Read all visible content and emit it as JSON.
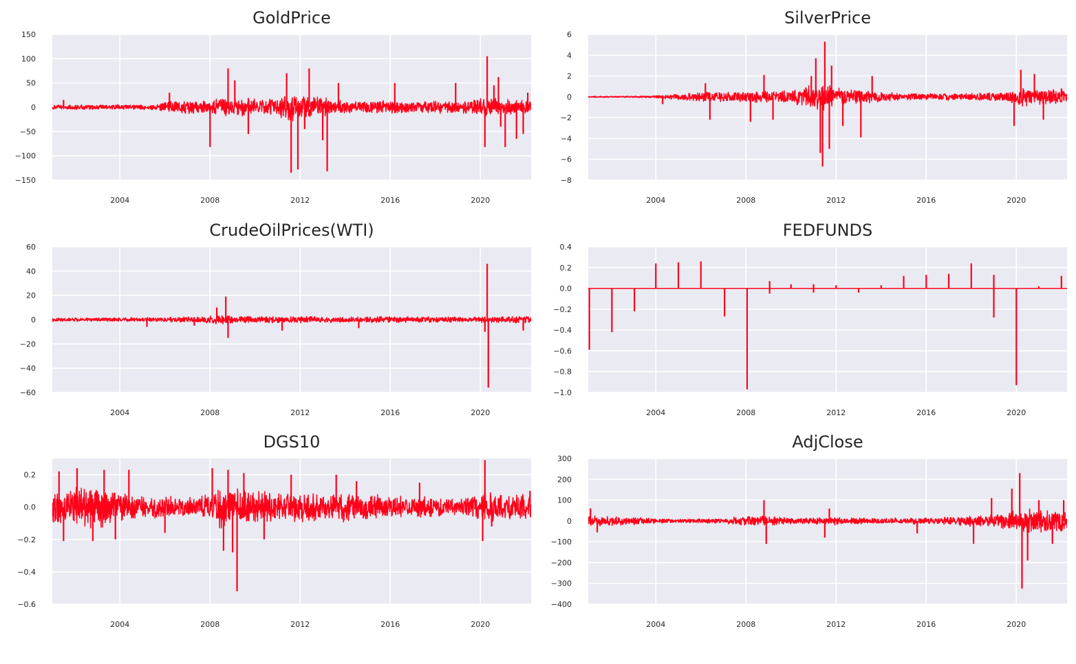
{
  "colors": {
    "background": "#eaeaf2",
    "grid": "#ffffff",
    "series": "#ff0019"
  },
  "chart_data": [
    {
      "type": "line",
      "title": "GoldPrice",
      "grid": true,
      "xlim": [
        2001.0,
        2022.25
      ],
      "ylim": [
        -150,
        150
      ],
      "xticks": [
        2004,
        2008,
        2012,
        2016,
        2020
      ],
      "xtick_labels": [
        "2004",
        "2008",
        "2012",
        "2016",
        "2020"
      ],
      "yticks": [
        -150,
        -100,
        -50,
        0,
        50,
        100,
        150
      ],
      "ytick_labels": [
        "−150",
        "−100",
        "−50",
        "0",
        "50",
        "100",
        "150"
      ],
      "series": [
        {
          "noise": [
            [
              2001.0,
              5
            ],
            [
              2005.5,
              6
            ],
            [
              2006.3,
              14
            ],
            [
              2008.0,
              16
            ],
            [
              2008.5,
              24
            ],
            [
              2009.6,
              20
            ],
            [
              2011.0,
              18
            ],
            [
              2011.5,
              36
            ],
            [
              2012.0,
              26
            ],
            [
              2013.0,
              22
            ],
            [
              2014.0,
              14
            ],
            [
              2019.5,
              14
            ],
            [
              2020.1,
              22
            ],
            [
              2021.0,
              18
            ],
            [
              2022.25,
              16
            ]
          ],
          "spikes": [
            [
              2001.5,
              15
            ],
            [
              2006.2,
              30
            ],
            [
              2008.0,
              -82
            ],
            [
              2008.8,
              80
            ],
            [
              2009.1,
              55
            ],
            [
              2009.7,
              -55
            ],
            [
              2011.4,
              70
            ],
            [
              2011.6,
              -135
            ],
            [
              2011.9,
              -128
            ],
            [
              2012.2,
              -45
            ],
            [
              2012.4,
              80
            ],
            [
              2013.0,
              -68
            ],
            [
              2013.2,
              -132
            ],
            [
              2013.7,
              50
            ],
            [
              2016.2,
              50
            ],
            [
              2018.9,
              50
            ],
            [
              2020.2,
              -82
            ],
            [
              2020.3,
              105
            ],
            [
              2020.6,
              45
            ],
            [
              2020.8,
              62
            ],
            [
              2020.9,
              -40
            ],
            [
              2021.1,
              -82
            ],
            [
              2021.6,
              -65
            ],
            [
              2021.9,
              -55
            ],
            [
              2022.1,
              30
            ]
          ]
        }
      ]
    },
    {
      "type": "line",
      "title": "SilverPrice",
      "grid": true,
      "xlim": [
        2001.0,
        2022.25
      ],
      "ylim": [
        -8,
        6
      ],
      "xticks": [
        2004,
        2008,
        2012,
        2016,
        2020
      ],
      "xtick_labels": [
        "2004",
        "2008",
        "2012",
        "2016",
        "2020"
      ],
      "yticks": [
        -8,
        -6,
        -4,
        -2,
        0,
        2,
        4,
        6
      ],
      "ytick_labels": [
        "−8",
        "−6",
        "−4",
        "−2",
        "0",
        "2",
        "4",
        "6"
      ],
      "series": [
        {
          "noise": [
            [
              2001.0,
              0.06
            ],
            [
              2003.5,
              0.08
            ],
            [
              2005.0,
              0.3
            ],
            [
              2006.3,
              0.5
            ],
            [
              2008.0,
              0.55
            ],
            [
              2010.0,
              0.65
            ],
            [
              2011.0,
              1.3
            ],
            [
              2011.5,
              1.6
            ],
            [
              2012.0,
              0.9
            ],
            [
              2013.0,
              0.7
            ],
            [
              2015.0,
              0.35
            ],
            [
              2018.0,
              0.35
            ],
            [
              2019.5,
              0.5
            ],
            [
              2020.2,
              1.0
            ],
            [
              2021.0,
              0.8
            ],
            [
              2022.25,
              0.7
            ]
          ],
          "spikes": [
            [
              2004.3,
              -0.7
            ],
            [
              2006.2,
              1.3
            ],
            [
              2006.4,
              -2.2
            ],
            [
              2008.2,
              -2.4
            ],
            [
              2008.8,
              2.1
            ],
            [
              2009.2,
              -2.2
            ],
            [
              2010.9,
              2.0
            ],
            [
              2011.1,
              3.7
            ],
            [
              2011.3,
              -5.4
            ],
            [
              2011.4,
              -6.7
            ],
            [
              2011.5,
              5.3
            ],
            [
              2011.7,
              -5.0
            ],
            [
              2011.8,
              3.0
            ],
            [
              2012.3,
              -2.8
            ],
            [
              2013.1,
              -3.9
            ],
            [
              2013.6,
              2.0
            ],
            [
              2019.9,
              -2.8
            ],
            [
              2020.2,
              2.6
            ],
            [
              2020.8,
              2.2
            ],
            [
              2021.2,
              -2.2
            ],
            [
              2022.0,
              0.8
            ]
          ]
        }
      ]
    },
    {
      "type": "line",
      "title": "CrudeOilPrices(WTI)",
      "grid": true,
      "xlim": [
        2001.0,
        2022.25
      ],
      "ylim": [
        -60,
        60
      ],
      "xticks": [
        2004,
        2008,
        2012,
        2016,
        2020
      ],
      "xtick_labels": [
        "2004",
        "2008",
        "2012",
        "2016",
        "2020"
      ],
      "yticks": [
        -60,
        -40,
        -20,
        0,
        20,
        40,
        60
      ],
      "ytick_labels": [
        "−60",
        "−40",
        "−20",
        "0",
        "20",
        "40",
        "60"
      ],
      "series": [
        {
          "noise": [
            [
              2001.0,
              1.5
            ],
            [
              2005.0,
              1.8
            ],
            [
              2007.5,
              2.5
            ],
            [
              2008.5,
              4.0
            ],
            [
              2009.2,
              3.2
            ],
            [
              2011.0,
              2.8
            ],
            [
              2014.5,
              2.5
            ],
            [
              2015.5,
              2.8
            ],
            [
              2019.5,
              2.2
            ],
            [
              2020.3,
              3.0
            ],
            [
              2022.25,
              3.0
            ]
          ],
          "spikes": [
            [
              2005.2,
              -6
            ],
            [
              2007.3,
              -5
            ],
            [
              2008.3,
              10
            ],
            [
              2008.7,
              19
            ],
            [
              2008.8,
              -15
            ],
            [
              2011.2,
              -9
            ],
            [
              2014.6,
              -7
            ],
            [
              2020.2,
              -10
            ],
            [
              2020.3,
              46
            ],
            [
              2020.35,
              -56
            ],
            [
              2021.9,
              -9
            ]
          ]
        }
      ]
    },
    {
      "type": "line",
      "title": "FEDFUNDS",
      "grid": true,
      "xlim": [
        2001.0,
        2022.25
      ],
      "ylim": [
        -1.0,
        0.4
      ],
      "xticks": [
        2004,
        2008,
        2012,
        2016,
        2020
      ],
      "xtick_labels": [
        "2004",
        "2008",
        "2012",
        "2016",
        "2020"
      ],
      "yticks": [
        -1.0,
        -0.8,
        -0.6,
        -0.4,
        -0.2,
        0.0,
        0.2,
        0.4
      ],
      "ytick_labels": [
        "−1.0",
        "−0.8",
        "−0.6",
        "−0.4",
        "−0.2",
        "0.0",
        "0.2",
        "0.4"
      ],
      "series": [
        {
          "noise": [
            [
              2001.0,
              0
            ],
            [
              2022.25,
              0
            ]
          ],
          "spikes": [
            [
              2001.05,
              -0.59
            ],
            [
              2002.05,
              -0.42
            ],
            [
              2003.05,
              -0.22
            ],
            [
              2004.0,
              0.24
            ],
            [
              2005.0,
              0.25
            ],
            [
              2006.0,
              0.26
            ],
            [
              2007.05,
              -0.27
            ],
            [
              2008.05,
              -0.97
            ],
            [
              2009.05,
              -0.05
            ],
            [
              2009.05,
              0.07
            ],
            [
              2010.0,
              0.04
            ],
            [
              2011.0,
              -0.04
            ],
            [
              2011.0,
              0.04
            ],
            [
              2012.0,
              0.03
            ],
            [
              2013.0,
              -0.04
            ],
            [
              2014.0,
              0.03
            ],
            [
              2015.0,
              0.12
            ],
            [
              2016.0,
              0.13
            ],
            [
              2017.0,
              0.14
            ],
            [
              2018.0,
              0.24
            ],
            [
              2019.0,
              -0.28
            ],
            [
              2019.0,
              0.13
            ],
            [
              2020.0,
              -0.93
            ],
            [
              2021.0,
              0.02
            ],
            [
              2022.0,
              0.12
            ]
          ]
        }
      ]
    },
    {
      "type": "line",
      "title": "DGS10",
      "grid": true,
      "xlim": [
        2001.0,
        2022.25
      ],
      "ylim": [
        -0.6,
        0.3
      ],
      "xticks": [
        2004,
        2008,
        2012,
        2016,
        2020
      ],
      "xtick_labels": [
        "2004",
        "2008",
        "2012",
        "2016",
        "2020"
      ],
      "yticks": [
        -0.6,
        -0.4,
        -0.2,
        0.0,
        0.2
      ],
      "ytick_labels": [
        "−0.6",
        "−0.4",
        "−0.2",
        "0.0",
        "0.2"
      ],
      "series": [
        {
          "noise": [
            [
              2001.0,
              0.13
            ],
            [
              2003.0,
              0.14
            ],
            [
              2004.5,
              0.08
            ],
            [
              2007.5,
              0.06
            ],
            [
              2008.5,
              0.14
            ],
            [
              2009.5,
              0.11
            ],
            [
              2011.0,
              0.1
            ],
            [
              2013.5,
              0.1
            ],
            [
              2016.0,
              0.08
            ],
            [
              2019.0,
              0.06
            ],
            [
              2020.3,
              0.11
            ],
            [
              2021.0,
              0.08
            ],
            [
              2022.25,
              0.09
            ]
          ],
          "spikes": [
            [
              2001.3,
              0.22
            ],
            [
              2001.5,
              -0.21
            ],
            [
              2002.1,
              0.24
            ],
            [
              2002.8,
              -0.21
            ],
            [
              2003.3,
              0.23
            ],
            [
              2003.8,
              -0.2
            ],
            [
              2004.4,
              0.23
            ],
            [
              2006.0,
              -0.16
            ],
            [
              2008.1,
              0.24
            ],
            [
              2008.6,
              -0.27
            ],
            [
              2008.8,
              0.23
            ],
            [
              2009.0,
              -0.28
            ],
            [
              2009.2,
              -0.52
            ],
            [
              2009.5,
              0.21
            ],
            [
              2010.4,
              -0.2
            ],
            [
              2011.6,
              0.2
            ],
            [
              2013.6,
              0.2
            ],
            [
              2014.5,
              0.16
            ],
            [
              2017.3,
              0.15
            ],
            [
              2020.1,
              -0.21
            ],
            [
              2020.2,
              0.29
            ],
            [
              2020.5,
              -0.12
            ],
            [
              2022.2,
              0.1
            ]
          ]
        }
      ]
    },
    {
      "type": "line",
      "title": "AdjClose",
      "grid": true,
      "xlim": [
        2001.0,
        2022.25
      ],
      "ylim": [
        -400,
        300
      ],
      "xticks": [
        2004,
        2008,
        2012,
        2016,
        2020
      ],
      "xtick_labels": [
        "2004",
        "2008",
        "2012",
        "2016",
        "2020"
      ],
      "yticks": [
        -400,
        -300,
        -200,
        -100,
        0,
        100,
        200,
        300
      ],
      "ytick_labels": [
        "−400",
        "−300",
        "−200",
        "−100",
        "0",
        "100",
        "200",
        "300"
      ],
      "series": [
        {
          "noise": [
            [
              2001.0,
              28
            ],
            [
              2003.0,
              20
            ],
            [
              2004.5,
              10
            ],
            [
              2007.0,
              12
            ],
            [
              2008.0,
              26
            ],
            [
              2009.5,
              22
            ],
            [
              2010.5,
              14
            ],
            [
              2012.0,
              20
            ],
            [
              2013.5,
              14
            ],
            [
              2016.0,
              16
            ],
            [
              2018.0,
              28
            ],
            [
              2019.0,
              32
            ],
            [
              2020.1,
              55
            ],
            [
              2020.5,
              70
            ],
            [
              2021.2,
              55
            ],
            [
              2022.25,
              52
            ]
          ],
          "spikes": [
            [
              2001.1,
              60
            ],
            [
              2001.4,
              -55
            ],
            [
              2008.8,
              100
            ],
            [
              2008.9,
              -110
            ],
            [
              2011.5,
              -80
            ],
            [
              2011.7,
              60
            ],
            [
              2015.6,
              -60
            ],
            [
              2018.1,
              -110
            ],
            [
              2018.9,
              110
            ],
            [
              2019.8,
              155
            ],
            [
              2020.15,
              230
            ],
            [
              2020.25,
              -325
            ],
            [
              2020.5,
              -190
            ],
            [
              2021.0,
              100
            ],
            [
              2021.6,
              -110
            ],
            [
              2022.1,
              100
            ]
          ]
        }
      ]
    }
  ]
}
